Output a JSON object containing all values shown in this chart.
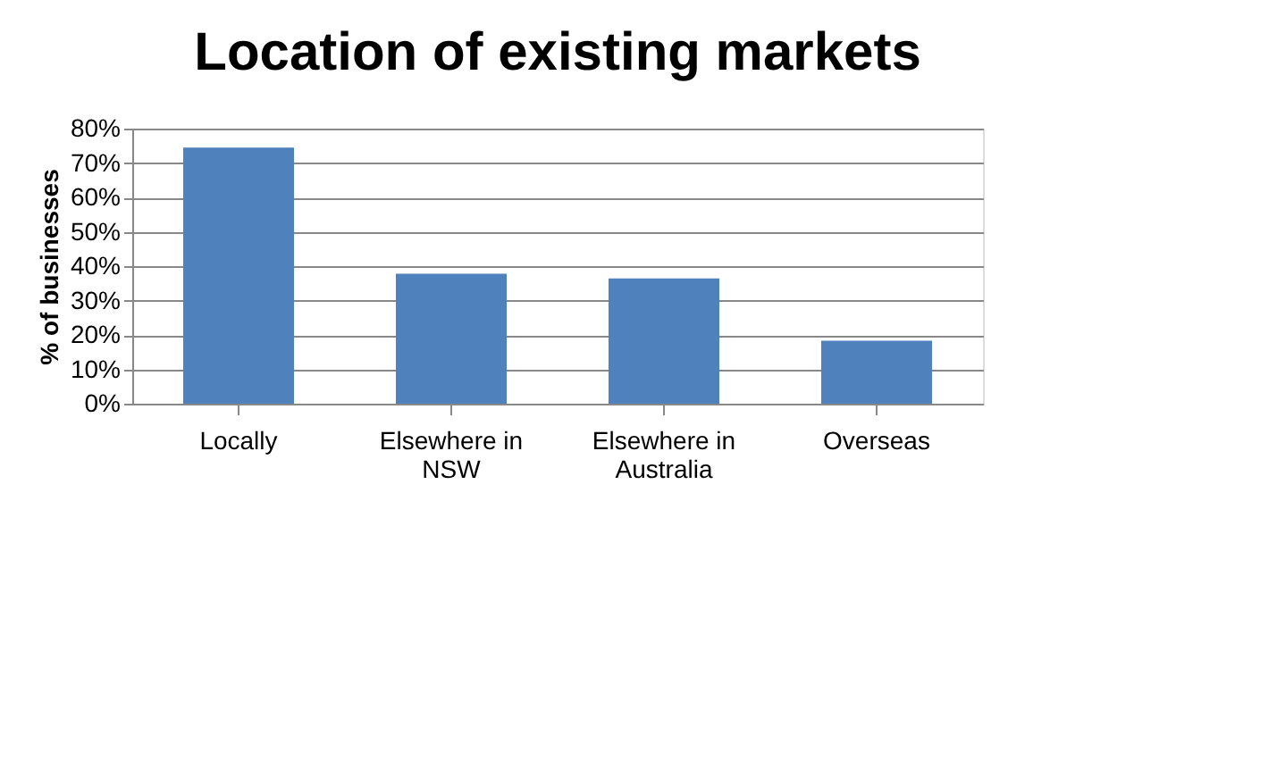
{
  "chart_data": {
    "type": "bar",
    "title": "Location of existing markets",
    "ylabel": "% of businesses",
    "categories": [
      "Locally",
      "Elsewhere in NSW",
      "Elsewhere in Australia",
      "Overseas"
    ],
    "values": [
      74.5,
      37.8,
      36.4,
      18.3
    ],
    "color": "#4f81bd",
    "ylim": [
      0,
      80
    ],
    "yticks": [
      {
        "value": 0,
        "label": "0%"
      },
      {
        "value": 10,
        "label": "10%"
      },
      {
        "value": 20,
        "label": "20%"
      },
      {
        "value": 30,
        "label": "30%"
      },
      {
        "value": 40,
        "label": "40%"
      },
      {
        "value": 50,
        "label": "50%"
      },
      {
        "value": 60,
        "label": "60%"
      },
      {
        "value": 70,
        "label": "70%"
      },
      {
        "value": 80,
        "label": "80%"
      }
    ],
    "grid": "y"
  }
}
